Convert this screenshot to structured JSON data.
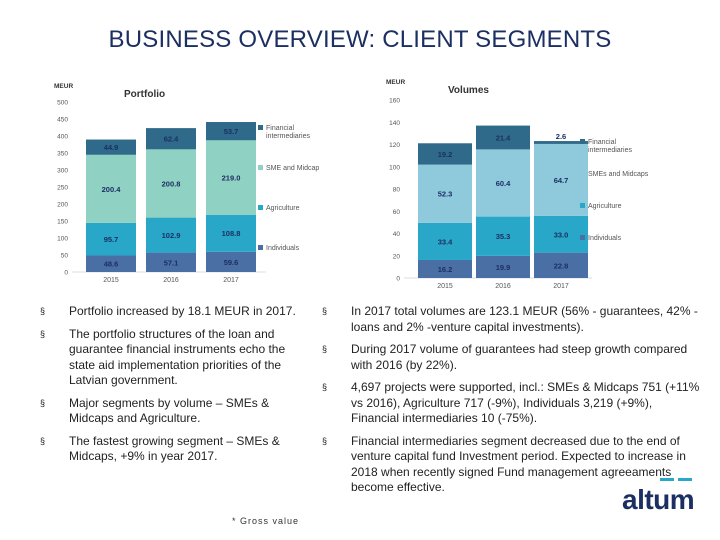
{
  "title": "BUSINESS OVERVIEW: CLIENT SEGMENTS",
  "colors": {
    "individuals": "#4a6fa5",
    "agriculture": "#28a7c8",
    "sme": "#8fd1c2",
    "financial": "#2f6a8a",
    "volumes_sme": "#8fc9dc",
    "title": "#1c2f63"
  },
  "chart_data": [
    {
      "type": "bar",
      "stacked": true,
      "title": "Portfolio",
      "ylabel": "MEUR",
      "ylim": [
        0,
        500
      ],
      "yticks": [
        0,
        50,
        100,
        150,
        200,
        250,
        300,
        350,
        400,
        450,
        500
      ],
      "categories": [
        "2015",
        "2016",
        "2017"
      ],
      "series": [
        {
          "name": "Individuals",
          "values": [
            48.6,
            57.1,
            59.6
          ]
        },
        {
          "name": "Agriculture",
          "values": [
            95.7,
            102.9,
            108.8
          ]
        },
        {
          "name": "SME and Midcap",
          "values": [
            200.4,
            200.8,
            219.0
          ]
        },
        {
          "name": "Financial intermediaries",
          "values": [
            44.9,
            62.4,
            53.7
          ]
        }
      ],
      "legend": [
        "Financial intermediaries",
        "SME and Midcap",
        "Agriculture",
        "Individuals"
      ]
    },
    {
      "type": "bar",
      "stacked": true,
      "title": "Volumes",
      "ylabel": "MEUR",
      "ylim": [
        0,
        160
      ],
      "yticks": [
        0,
        20,
        40,
        60,
        80,
        100,
        120,
        140,
        160
      ],
      "categories": [
        "2015",
        "2016",
        "2017"
      ],
      "series": [
        {
          "name": "Individuals",
          "values": [
            16.2,
            19.9,
            22.8
          ]
        },
        {
          "name": "Agriculture",
          "values": [
            33.4,
            35.3,
            33.0
          ]
        },
        {
          "name": "SMEs and Midcaps",
          "values": [
            52.3,
            60.4,
            64.7
          ]
        },
        {
          "name": "Financial intermediaries",
          "values": [
            19.2,
            21.4,
            2.6
          ]
        }
      ],
      "legend": [
        "Financial intermediaries",
        "SMEs and Midcaps",
        "Agriculture",
        "Individuals"
      ]
    }
  ],
  "left_bullets": [
    "Portfolio increased by 18.1 MEUR in 2017.",
    "The portfolio structures of the loan and guarantee financial instruments echo the state aid implementation priorities of the Latvian government.",
    "Major segments by volume – SMEs & Midcaps and Agriculture.",
    "The fastest growing segment – SMEs & Midcaps, +9% in year 2017."
  ],
  "right_bullets": [
    "In 2017 total volumes are 123.1 MEUR (56% - guarantees, 42% - loans and 2% -venture capital investments).",
    "During 2017 volume of guarantees had steep growth compared with 2016 (by 22%).",
    "4,697 projects were supported, incl.: SMEs & Midcaps 751 (+11% vs 2016), Agriculture 717 (-9%), Individuals 3,219 (+9%), Financial intermediaries 10 (-75%).",
    "Financial intermediaries segment decreased due to the end of venture capital fund Investment period. Expected to increase in 2018 when recently signed Fund management agreeaments become effective."
  ],
  "bullet_mark": "§",
  "footnote": "* Gross value",
  "logo": "altum"
}
